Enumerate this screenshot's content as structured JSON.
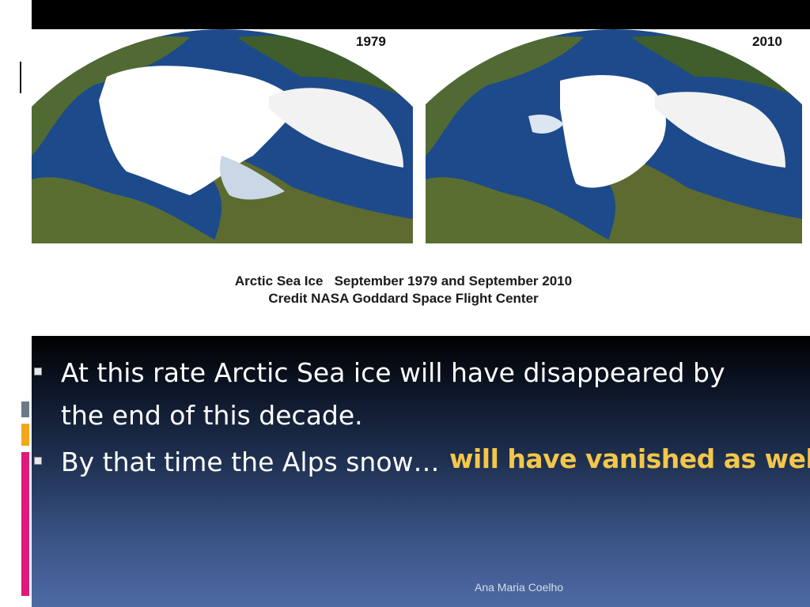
{
  "figure": {
    "year_left": "1979",
    "year_right": "2010",
    "caption_line1": "Arctic Sea Ice   September 1979 and September 2010",
    "caption_line2": "Credit NASA Goddard Space Flight Center"
  },
  "bullets": [
    {
      "line1": "At this rate Arctic Sea ice will have disappeared by",
      "line2": "the end of this decade."
    },
    {
      "line1": "By that time the Alps snow…"
    }
  ],
  "highlight": "will have vanished as well.",
  "footer": "Ana Maria Coelho",
  "colors": {
    "highlight": "#f4c64a",
    "ice": "#ffffff",
    "ocean": "#1e4a8c",
    "land": "#4b6a2e",
    "accent_pink": "#e0197d",
    "accent_orange": "#f1a91a"
  }
}
